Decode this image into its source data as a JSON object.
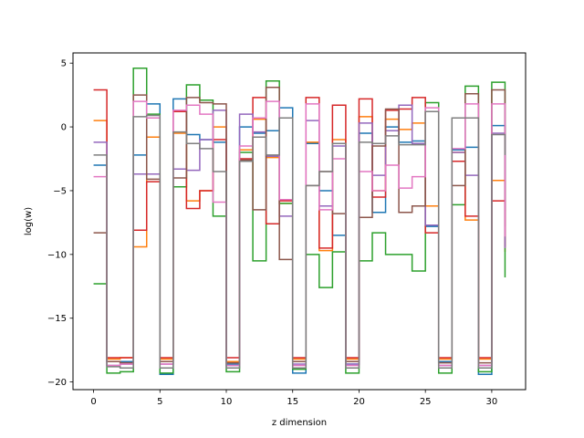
{
  "chart_data": {
    "type": "line",
    "title": "",
    "xlabel": "z dimension",
    "ylabel": "log(w)",
    "xlim": [
      -1.55,
      32.55
    ],
    "ylim": [
      -20.6,
      5.8
    ],
    "xticks": [
      0,
      5,
      10,
      15,
      20,
      25,
      30
    ],
    "yticks": [
      5,
      0,
      -5,
      -10,
      -15,
      -20
    ],
    "xtick_labels": [
      "0",
      "5",
      "10",
      "15",
      "20",
      "25",
      "30"
    ],
    "ytick_labels": [
      "5",
      "0",
      "−5",
      "−10",
      "−15",
      "−20"
    ],
    "grid": false,
    "legend": "none",
    "step_mode": "post",
    "x": [
      0,
      1,
      2,
      3,
      4,
      5,
      6,
      7,
      8,
      9,
      10,
      11,
      12,
      13,
      14,
      15,
      16,
      17,
      18,
      19,
      20,
      21,
      22,
      23,
      24,
      25,
      26,
      27,
      28,
      29,
      30,
      31
    ],
    "series": [
      {
        "color": "#1f77b4",
        "values": [
          -3.0,
          -18.4,
          -18.4,
          -2.2,
          1.8,
          -19.4,
          2.2,
          -0.6,
          -1.0,
          -1.2,
          -18.6,
          0.0,
          -0.5,
          -0.3,
          1.5,
          -19.3,
          -1.3,
          -5.0,
          -8.5,
          -18.6,
          -0.5,
          -6.7,
          0.0,
          -1.2,
          -1.1,
          -7.8,
          -18.4,
          -1.8,
          -1.6,
          -19.4,
          0.1,
          -6.6
        ]
      },
      {
        "color": "#ff7f0e",
        "values": [
          0.5,
          -18.2,
          -18.1,
          -9.4,
          -0.8,
          -18.2,
          -0.5,
          -5.8,
          -5.0,
          0.0,
          -18.4,
          -1.8,
          0.6,
          -2.4,
          -6.0,
          -18.2,
          -1.2,
          -9.7,
          -1.0,
          -18.2,
          0.8,
          -5.0,
          0.6,
          -0.2,
          0.3,
          -6.2,
          -18.2,
          -2.0,
          -7.3,
          -18.2,
          -4.2,
          -9.8
        ]
      },
      {
        "color": "#2ca02c",
        "values": [
          -12.3,
          -19.3,
          -19.2,
          4.6,
          1.0,
          -19.3,
          -4.7,
          3.3,
          2.1,
          -7.0,
          -19.2,
          -2.0,
          -10.5,
          3.6,
          -6.0,
          -19.0,
          -10.0,
          -12.6,
          -9.8,
          -19.3,
          -10.5,
          -8.3,
          -10.0,
          -10.0,
          -11.3,
          1.9,
          -19.3,
          -6.1,
          3.2,
          -19.2,
          3.5,
          -11.8
        ]
      },
      {
        "color": "#d62728",
        "values": [
          2.9,
          -18.1,
          -18.1,
          -8.1,
          -4.3,
          -18.1,
          1.2,
          -6.4,
          -5.0,
          -1.0,
          -18.1,
          -2.5,
          2.3,
          -7.6,
          -5.8,
          -18.1,
          2.3,
          -9.5,
          1.7,
          -18.1,
          2.2,
          -5.5,
          1.3,
          1.4,
          2.3,
          -8.3,
          -18.1,
          -2.7,
          -7.0,
          -18.1,
          -5.8,
          -9.4
        ]
      },
      {
        "color": "#9467bd",
        "values": [
          -1.2,
          -18.7,
          -18.6,
          -3.7,
          -3.7,
          -18.6,
          -3.3,
          -3.4,
          -1.0,
          1.3,
          -18.7,
          1.0,
          -0.4,
          -2.3,
          -7.0,
          -18.6,
          0.5,
          -6.2,
          -1.5,
          -18.6,
          0.3,
          -3.8,
          -0.3,
          1.7,
          -1.3,
          -7.7,
          -18.7,
          -2.0,
          -3.8,
          -18.7,
          -0.5,
          -9.5
        ]
      },
      {
        "color": "#8c564b",
        "values": [
          -8.3,
          -18.4,
          -18.5,
          2.5,
          -4.1,
          -18.4,
          -4.0,
          2.3,
          1.9,
          1.8,
          -18.5,
          -2.6,
          -6.5,
          3.1,
          -10.4,
          -18.4,
          -4.6,
          -3.5,
          -6.8,
          -18.4,
          -7.1,
          -1.5,
          1.4,
          -6.7,
          -6.2,
          1.2,
          -18.5,
          -4.6,
          2.6,
          -18.5,
          2.9,
          -7.8
        ]
      },
      {
        "color": "#e377c2",
        "values": [
          -3.9,
          -18.7,
          -18.6,
          2.0,
          0.7,
          -18.6,
          1.3,
          1.7,
          1.0,
          -5.9,
          -18.7,
          -1.5,
          0.7,
          2.0,
          -5.7,
          -18.7,
          1.8,
          -6.5,
          -2.5,
          -18.7,
          -3.5,
          -5.0,
          -3.0,
          -4.8,
          -3.9,
          1.5,
          -18.7,
          -1.7,
          1.8,
          -18.7,
          1.8,
          -8.6
        ]
      },
      {
        "color": "#7f7f7f",
        "values": [
          -2.2,
          -18.8,
          -18.9,
          0.8,
          0.9,
          -18.9,
          -0.4,
          -1.3,
          -1.7,
          -3.5,
          -18.9,
          -2.7,
          -0.8,
          -2.2,
          0.7,
          -18.9,
          -4.6,
          -3.5,
          -1.3,
          -18.9,
          -1.2,
          -1.3,
          -0.7,
          -1.4,
          -1.4,
          1.2,
          -18.9,
          0.7,
          0.7,
          -18.9,
          -0.6,
          -2.2
        ]
      }
    ]
  }
}
